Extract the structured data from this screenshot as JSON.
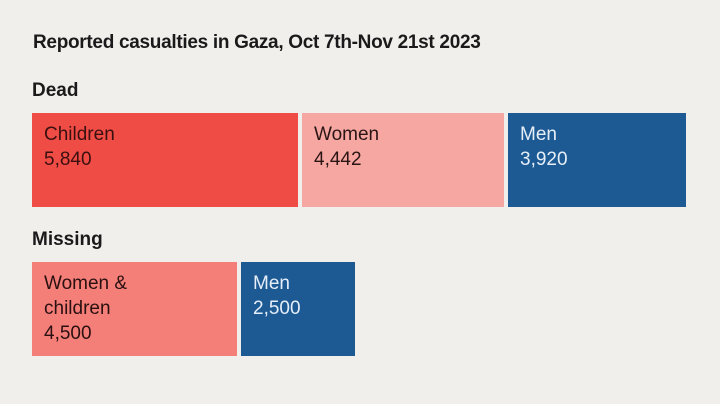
{
  "chart_data": {
    "type": "bar",
    "title": "Reported casualties in Gaza, Oct 7th-Nov 21st 2023",
    "groups": [
      {
        "name": "Dead",
        "segments": [
          {
            "label": "Children",
            "value": 5840,
            "value_text": "5,840",
            "color": "#ef4c45",
            "text_color": "#3a1010"
          },
          {
            "label": "Women",
            "value": 4442,
            "value_text": "4,442",
            "color": "#f6a7a1",
            "text_color": "#2a1515"
          },
          {
            "label": "Men",
            "value": 3920,
            "value_text": "3,920",
            "color": "#1d5a94",
            "text_color": "#e6eef8"
          }
        ]
      },
      {
        "name": "Missing",
        "segments": [
          {
            "label": "Women &\nchildren",
            "value": 4500,
            "value_text": "4,500",
            "color": "#f47f79",
            "text_color": "#2a1010"
          },
          {
            "label": "Men",
            "value": 2500,
            "value_text": "2,500",
            "color": "#1d5a94",
            "text_color": "#e6eef8"
          }
        ]
      }
    ]
  }
}
